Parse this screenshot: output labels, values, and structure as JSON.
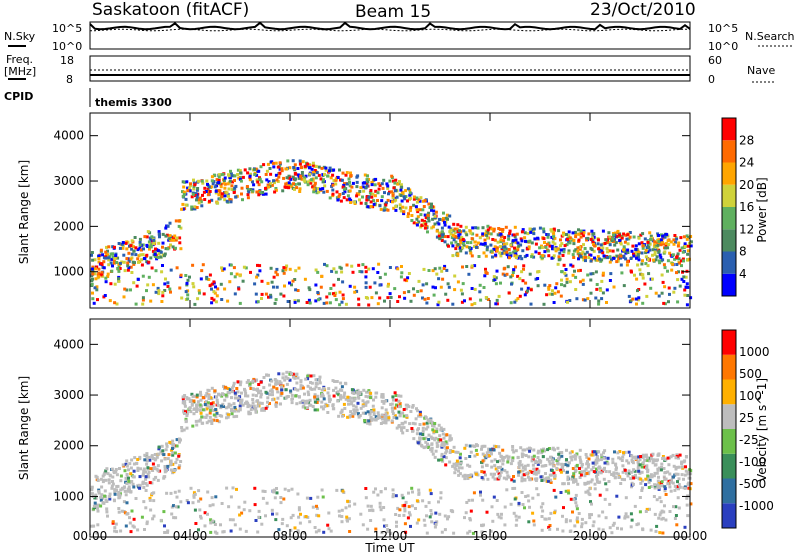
{
  "header": {
    "station": "Saskatoon (fitACF)",
    "beam": "Beam 15",
    "date": "23/Oct/2010"
  },
  "summary_panel": {
    "nsky_label": "N.Sky",
    "nsearch_label": "N.Search",
    "nsky_ticks": [
      "10^5",
      "10^0"
    ],
    "nsearch_ticks": [
      "10^5",
      "10^0"
    ],
    "freq_label_1": "Freq.",
    "freq_label_2": "[MHz]",
    "freq_ticks": [
      "18",
      "8"
    ],
    "nave_label": "Nave",
    "nave_ticks": [
      "60",
      "0"
    ],
    "cpid_label": "CPID",
    "cpid_value": "themis 3300"
  },
  "chart_data": [
    {
      "type": "heatmap",
      "panel": "power",
      "ylabel": "Slant Range [km]",
      "ylim": [
        200,
        4500
      ],
      "yticks": [
        1000,
        2000,
        3000,
        4000
      ],
      "colorbar_label": "Power [dB]",
      "colorbar_ticks": [
        "28",
        "24",
        "20",
        "16",
        "12",
        "8",
        "4"
      ],
      "colorscale": [
        "#0000ff",
        "#2a5fb0",
        "#4c8a5f",
        "#5fb05f",
        "#cfd23a",
        "#ffa500",
        "#ff6a00",
        "#ff0000"
      ]
    },
    {
      "type": "heatmap",
      "panel": "velocity",
      "ylabel": "Slant Range [km]",
      "ylim": [
        200,
        4500
      ],
      "yticks": [
        1000,
        2000,
        3000,
        4000
      ],
      "colorbar_label": "Velocity [m s^-1]",
      "colorbar_ticks": [
        "1000",
        "500",
        "100",
        "25",
        "-25",
        "-100",
        "-500",
        "-1000"
      ],
      "colorscale": [
        "#2a3fbf",
        "#2f6fa0",
        "#3a8f5a",
        "#6cc04a",
        "#bdbdbd",
        "#ffb000",
        "#ff7700",
        "#ff0000"
      ]
    }
  ],
  "xaxis": {
    "label": "Time UT",
    "ticks": [
      "00:00",
      "04:00",
      "08:00",
      "12:00",
      "16:00",
      "20:00",
      "00:00"
    ]
  }
}
